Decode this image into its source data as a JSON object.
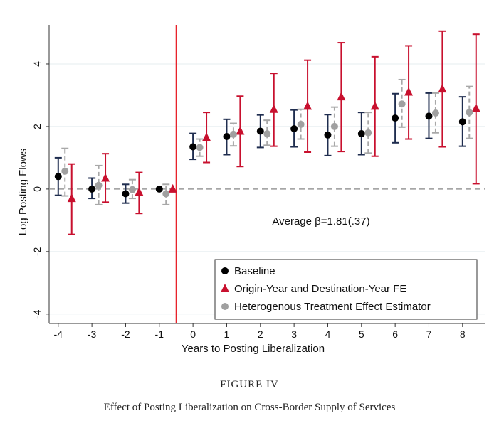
{
  "chart_data": {
    "type": "scatter",
    "subtype": "coefficient plot with confidence intervals",
    "xlabel": "Years to Posting Liberalization",
    "ylabel": "Log Posting Flows",
    "xlim": [
      -4.27,
      8.68
    ],
    "ylim": [
      -4.3,
      5.25
    ],
    "x_ticks": [
      -4,
      -3,
      -2,
      -1,
      0,
      1,
      2,
      3,
      4,
      5,
      6,
      7,
      8
    ],
    "y_ticks": [
      -4,
      -2,
      0,
      2,
      4
    ],
    "grid": "horizontal at y ticks",
    "reference_lines": {
      "horizontal_dashed_y": 0,
      "vertical_x": -0.5
    },
    "annotation": "Average β=1.81(.37)",
    "legend_position": "bottom-right",
    "x": [
      -4,
      -3,
      -2,
      -1,
      0,
      1,
      2,
      3,
      4,
      5,
      6,
      7,
      8
    ],
    "series": [
      {
        "name": "Baseline",
        "marker": "circle",
        "color": "#000000",
        "ci_color": "#1f2d4f",
        "offset": 0,
        "values": [
          0.4,
          0.0,
          -0.15,
          0,
          1.35,
          1.68,
          1.85,
          1.93,
          1.73,
          1.77,
          2.27,
          2.33,
          2.15
        ],
        "lo": [
          -0.2,
          -0.3,
          -0.45,
          0,
          0.95,
          1.1,
          1.33,
          1.35,
          1.07,
          1.1,
          1.48,
          1.62,
          1.37
        ],
        "hi": [
          1.0,
          0.35,
          0.15,
          0,
          1.78,
          2.23,
          2.37,
          2.53,
          2.38,
          2.45,
          3.05,
          3.07,
          2.95
        ]
      },
      {
        "name": "Origin-Year and Destination-Year FE",
        "marker": "triangle",
        "color": "#c8102e",
        "ci_color": "#c8102e",
        "offset": 0.4,
        "values": [
          -0.3,
          0.35,
          -0.1,
          0,
          1.65,
          1.85,
          2.55,
          2.65,
          2.95,
          2.65,
          3.1,
          3.2,
          2.58
        ],
        "lo": [
          -1.45,
          -0.42,
          -0.78,
          0,
          0.85,
          0.72,
          1.37,
          1.18,
          1.2,
          1.05,
          1.6,
          1.35,
          0.17
        ],
        "hi": [
          0.8,
          1.13,
          0.53,
          0,
          2.45,
          2.97,
          3.7,
          4.12,
          4.68,
          4.23,
          4.58,
          5.05,
          4.95
        ]
      },
      {
        "name": "Heterogenous Treatment Effect Estimator",
        "marker": "circle",
        "color": "#a0a0a0",
        "ci_color": "#a8a8a8",
        "dashed": true,
        "offset": 0.2,
        "values": [
          0.57,
          0.12,
          -0.02,
          -0.15,
          1.33,
          1.75,
          1.77,
          2.07,
          2.0,
          1.8,
          2.72,
          2.43,
          2.45
        ],
        "lo": [
          -0.22,
          -0.5,
          -0.3,
          -0.5,
          1.05,
          1.38,
          1.4,
          1.6,
          1.37,
          1.15,
          1.98,
          1.8,
          1.62
        ],
        "hi": [
          1.3,
          0.75,
          0.3,
          0.15,
          1.6,
          2.1,
          2.2,
          2.55,
          2.62,
          2.45,
          3.5,
          3.07,
          3.28
        ]
      }
    ]
  },
  "caption": {
    "figure": "FIGURE IV",
    "title": "Effect of Posting Liberalization on Cross-Border Supply of Services"
  }
}
